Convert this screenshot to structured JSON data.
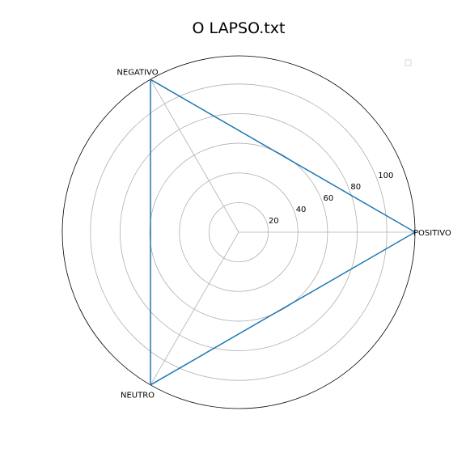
{
  "chart_data": {
    "type": "radar",
    "title": "O LAPSO.txt",
    "categories": [
      "POSITIVO",
      "NEGATIVO",
      "NEUTRO"
    ],
    "series": [
      {
        "values": [
          119,
          119,
          119
        ],
        "color": "#1f77b4"
      }
    ],
    "radial_ticks": [
      20,
      40,
      60,
      80,
      100
    ],
    "rlim": [
      0,
      119
    ],
    "grid": true,
    "legend": "top-right"
  }
}
